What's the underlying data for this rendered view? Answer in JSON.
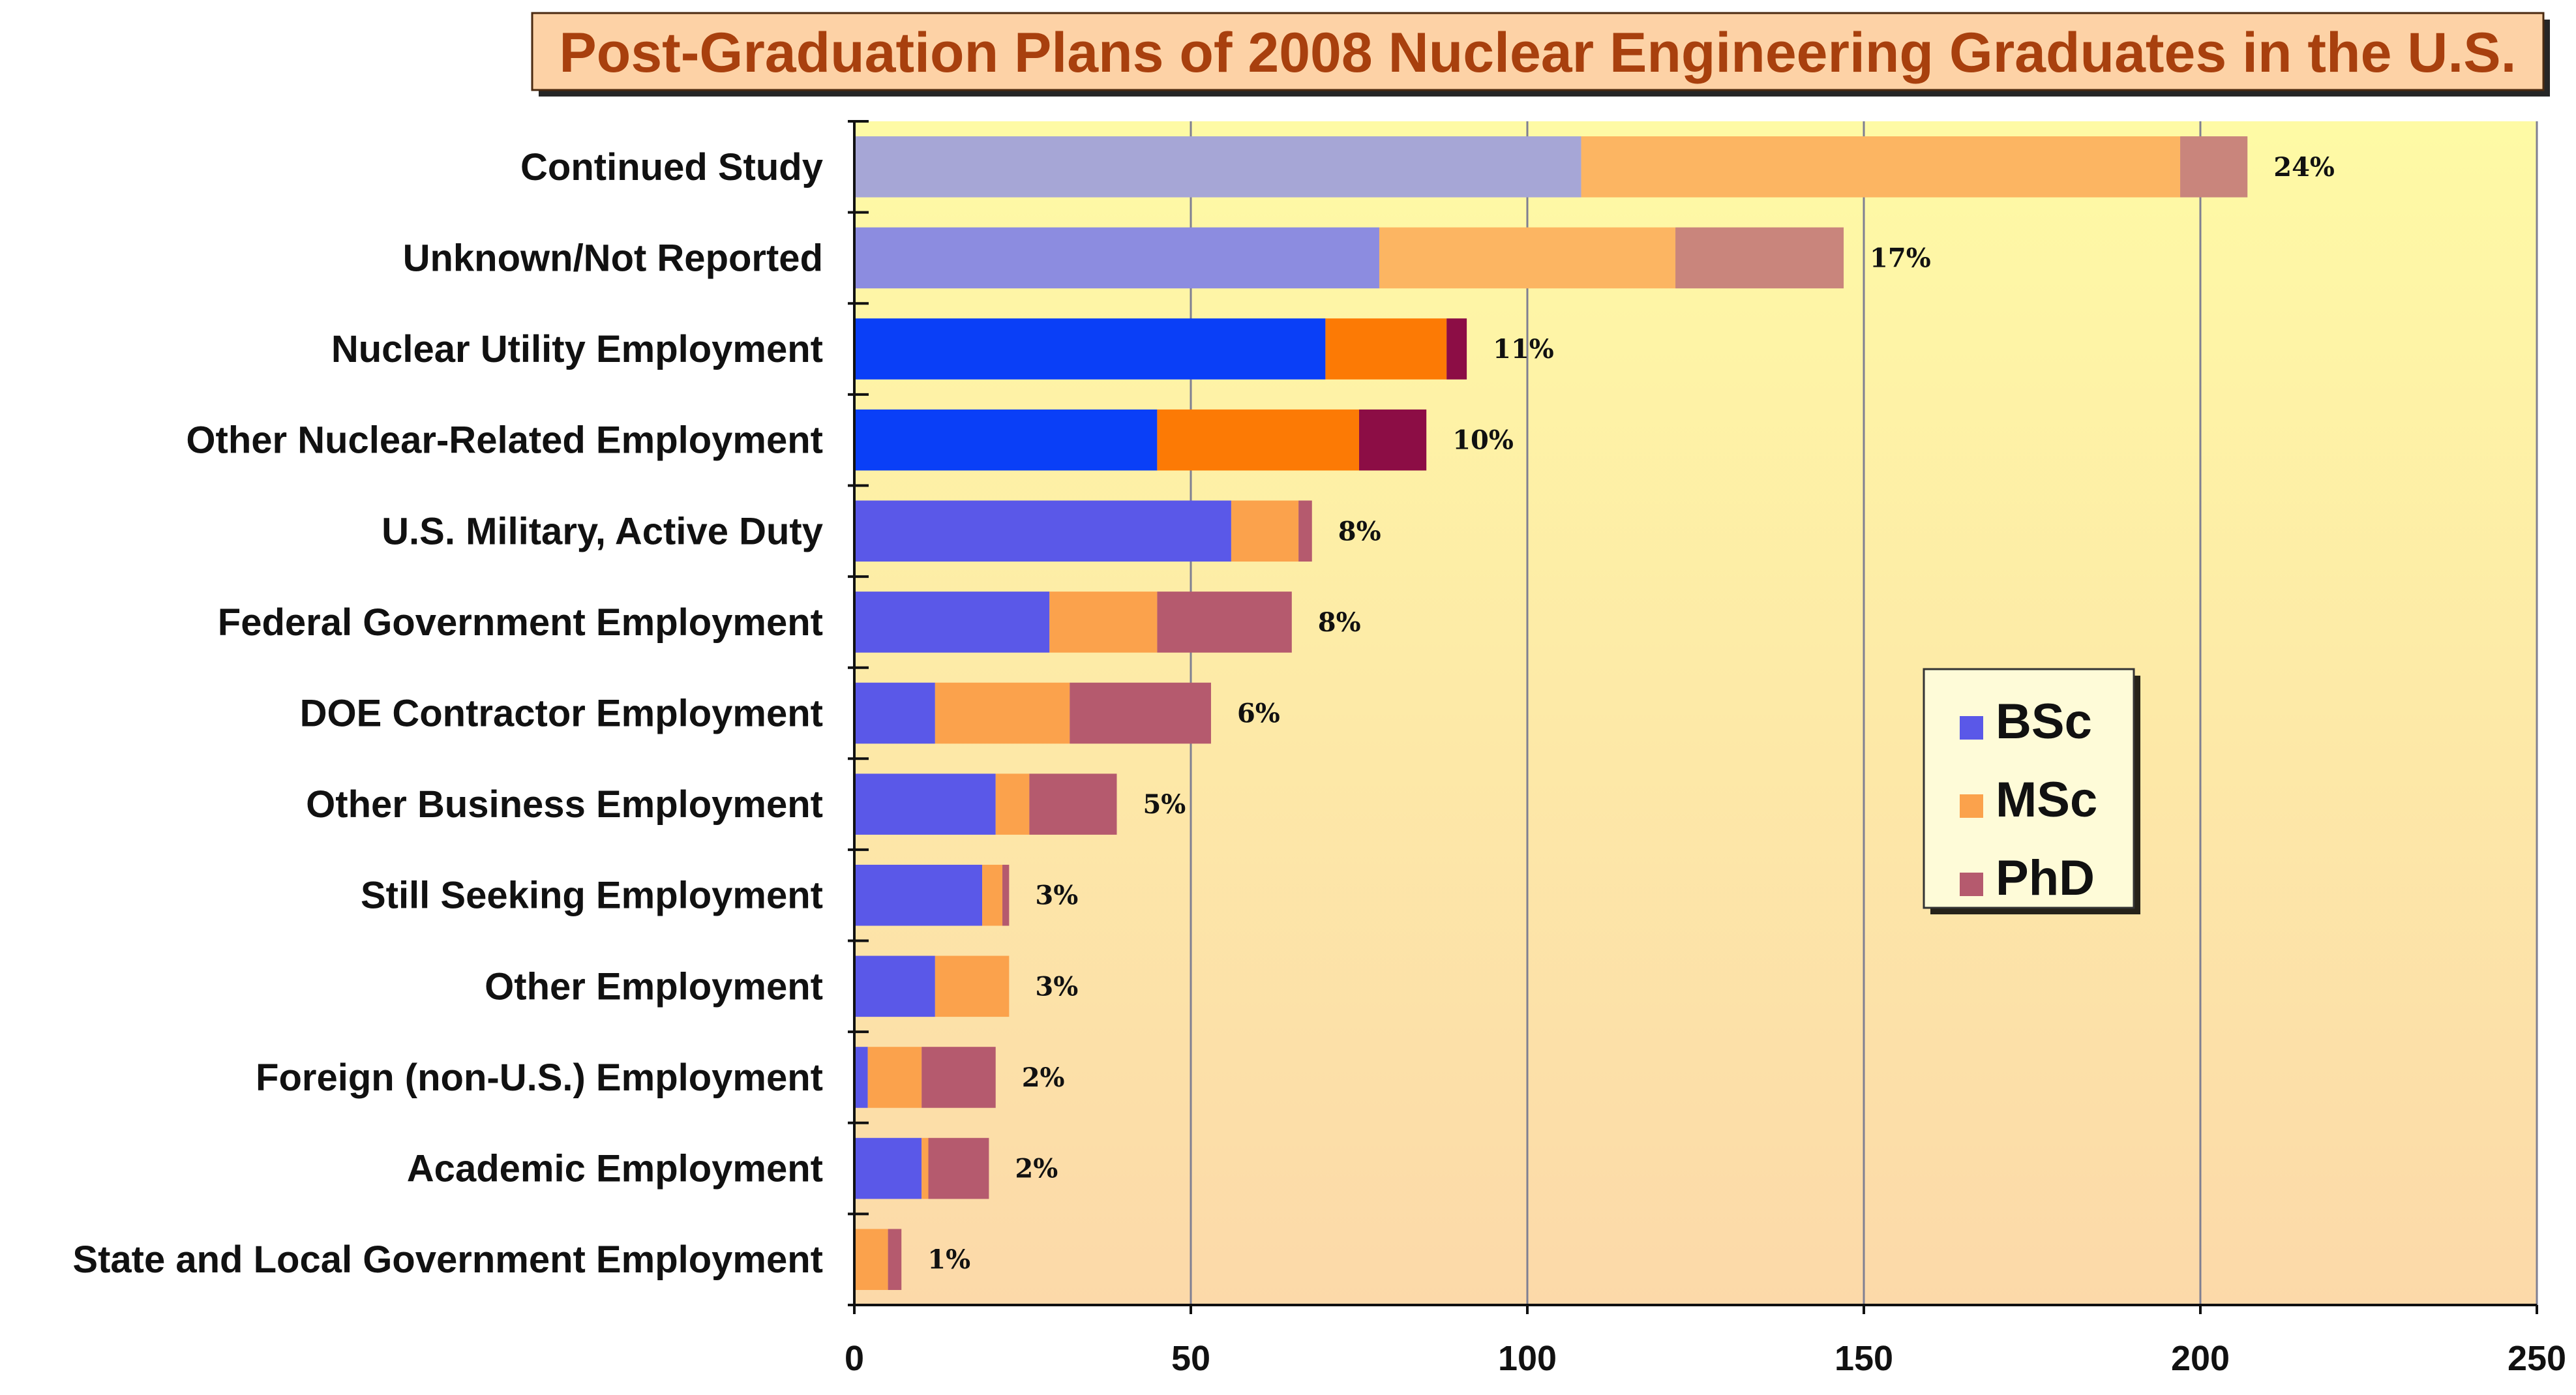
{
  "chart_data": {
    "type": "bar",
    "orientation": "horizontal",
    "stacked": true,
    "title": "Post-Graduation Plans of 2008 Nuclear Engineering Graduates in the U.S.",
    "categories": [
      "Continued Study",
      "Unknown/Not Reported",
      "Nuclear Utility Employment",
      "Other Nuclear-Related Employment",
      "U.S. Military, Active Duty",
      "Federal Government Employment",
      "DOE Contractor Employment",
      "Other Business Employment",
      "Still Seeking Employment",
      "Other Employment",
      "Foreign (non-U.S.) Employment",
      "Academic Employment",
      "State and Local Government Employment"
    ],
    "series": [
      {
        "name": "BSc",
        "values": [
          108,
          78,
          70,
          45,
          56,
          29,
          12,
          21,
          19,
          12,
          2,
          10,
          0
        ]
      },
      {
        "name": "MSc",
        "values": [
          89,
          44,
          18,
          30,
          10,
          16,
          20,
          5,
          3,
          11,
          8,
          1,
          5
        ]
      },
      {
        "name": "PhD",
        "values": [
          10,
          25,
          3,
          10,
          2,
          20,
          21,
          13,
          1,
          0,
          11,
          9,
          2
        ]
      }
    ],
    "percent_labels": [
      "24%",
      "17%",
      "11%",
      "10%",
      "8%",
      "8%",
      "6%",
      "5%",
      "3%",
      "3%",
      "2%",
      "2%",
      "1%"
    ],
    "xlim": [
      0,
      250
    ],
    "xticks": [
      0,
      50,
      100,
      150,
      200,
      250
    ],
    "xtick_labels": [
      "0",
      "50",
      "100",
      "150",
      "200",
      "250"
    ],
    "grid": "vertical",
    "legend": {
      "placement": "right",
      "entries": [
        "BSc",
        "MSc",
        "PhD"
      ]
    },
    "colors": {
      "highlighted": {
        "BSc": "#0a3ff7",
        "MSc": "#fc7a05",
        "PhD": "#8c0d45"
      },
      "faded_top": {
        "BSc": "#a6a6d6",
        "MSc": "#fcb562",
        "PhD": "#c9857c"
      },
      "faded_mid": {
        "BSc": "#8c8ce0",
        "MSc": "#fcb562",
        "PhD": "#c9857c"
      },
      "normal": {
        "BSc": "#5a58e8",
        "MSc": "#fba24c",
        "PhD": "#b55a6e"
      },
      "title_box_fill": "#fdd2a6",
      "title_text": "#a8400e",
      "plot_top": "#fefaa5",
      "plot_bottom": "#fcd9a9"
    }
  }
}
